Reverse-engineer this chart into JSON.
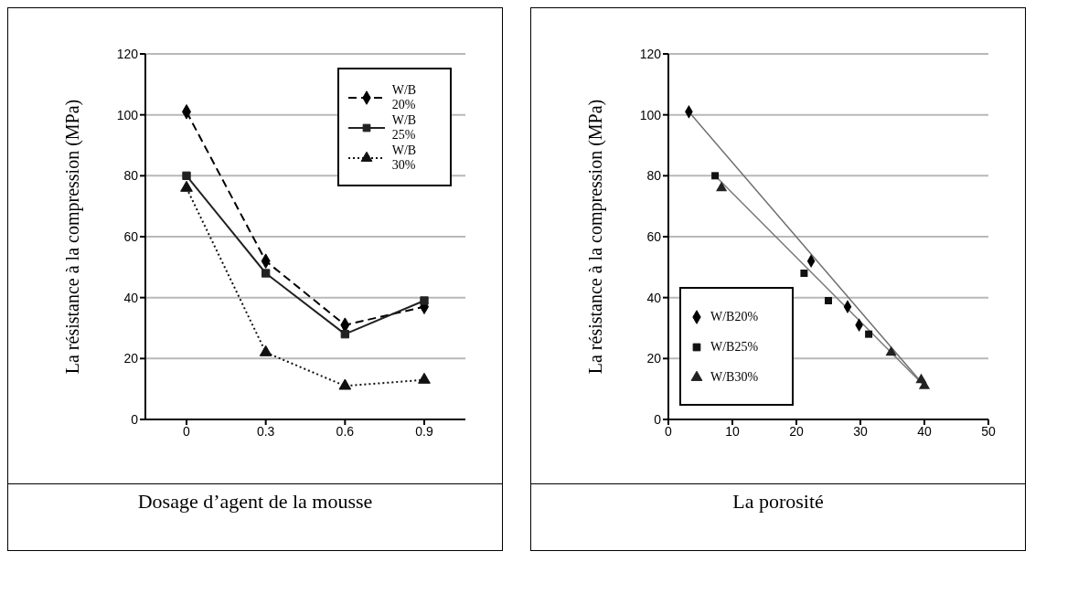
{
  "chart_data": [
    {
      "type": "line",
      "xlabel": "Dosage d’agent de la mousse",
      "ylabel": "La résistance à la compression  (MPa)",
      "categories": [
        "0",
        "0.3",
        "0.6",
        "0.9"
      ],
      "ylim": [
        0,
        120
      ],
      "yticks": [
        0,
        20,
        40,
        60,
        80,
        100,
        120
      ],
      "grid": "y",
      "legend": "top right",
      "series": [
        {
          "name": "W/B 20%",
          "color": "#000000",
          "values": [
            101,
            52,
            31,
            37
          ],
          "marker": "diamond",
          "line_style": "dashed"
        },
        {
          "name": "W/B 25%",
          "color": "#222222",
          "values": [
            80,
            48,
            28,
            39
          ],
          "marker": "square",
          "line_style": "solid"
        },
        {
          "name": "W/B 30%",
          "color": "#111111",
          "values": [
            76,
            22,
            11,
            13
          ],
          "marker": "triangle",
          "line_style": "dotted"
        }
      ]
    },
    {
      "type": "scatter",
      "xlabel": "La porosité",
      "ylabel": "La résistance à la compression (MPa)",
      "xlim": [
        0,
        50
      ],
      "xticks": [
        0,
        10,
        20,
        30,
        40,
        50
      ],
      "ylim": [
        0,
        120
      ],
      "yticks": [
        0,
        20,
        40,
        60,
        80,
        100,
        120
      ],
      "grid": "y",
      "legend": "bottom left",
      "series": [
        {
          "name": "W/B20%",
          "color": "#000000",
          "x": [
            3.2,
            22.3,
            29.8,
            28
          ],
          "values": [
            101,
            52,
            31,
            37
          ],
          "marker": "diamond"
        },
        {
          "name": "W/B25%",
          "color": "#111111",
          "x": [
            7.3,
            21.2,
            31.3,
            25
          ],
          "values": [
            80,
            48,
            28,
            39
          ],
          "marker": "square"
        },
        {
          "name": "W/B30%",
          "color": "#222222",
          "x": [
            8.3,
            34.8,
            40,
            39.5
          ],
          "values": [
            76,
            22,
            11,
            13
          ],
          "marker": "triangle"
        },
        {
          "type": "line",
          "color": "#6e6e6e",
          "x": [
            3.2,
            40
          ],
          "values": [
            101,
            11
          ],
          "marker": "none"
        },
        {
          "type": "line",
          "color": "#7a7a7a",
          "x": [
            7.3,
            40
          ],
          "values": [
            80,
            11
          ],
          "marker": "none"
        }
      ]
    }
  ]
}
